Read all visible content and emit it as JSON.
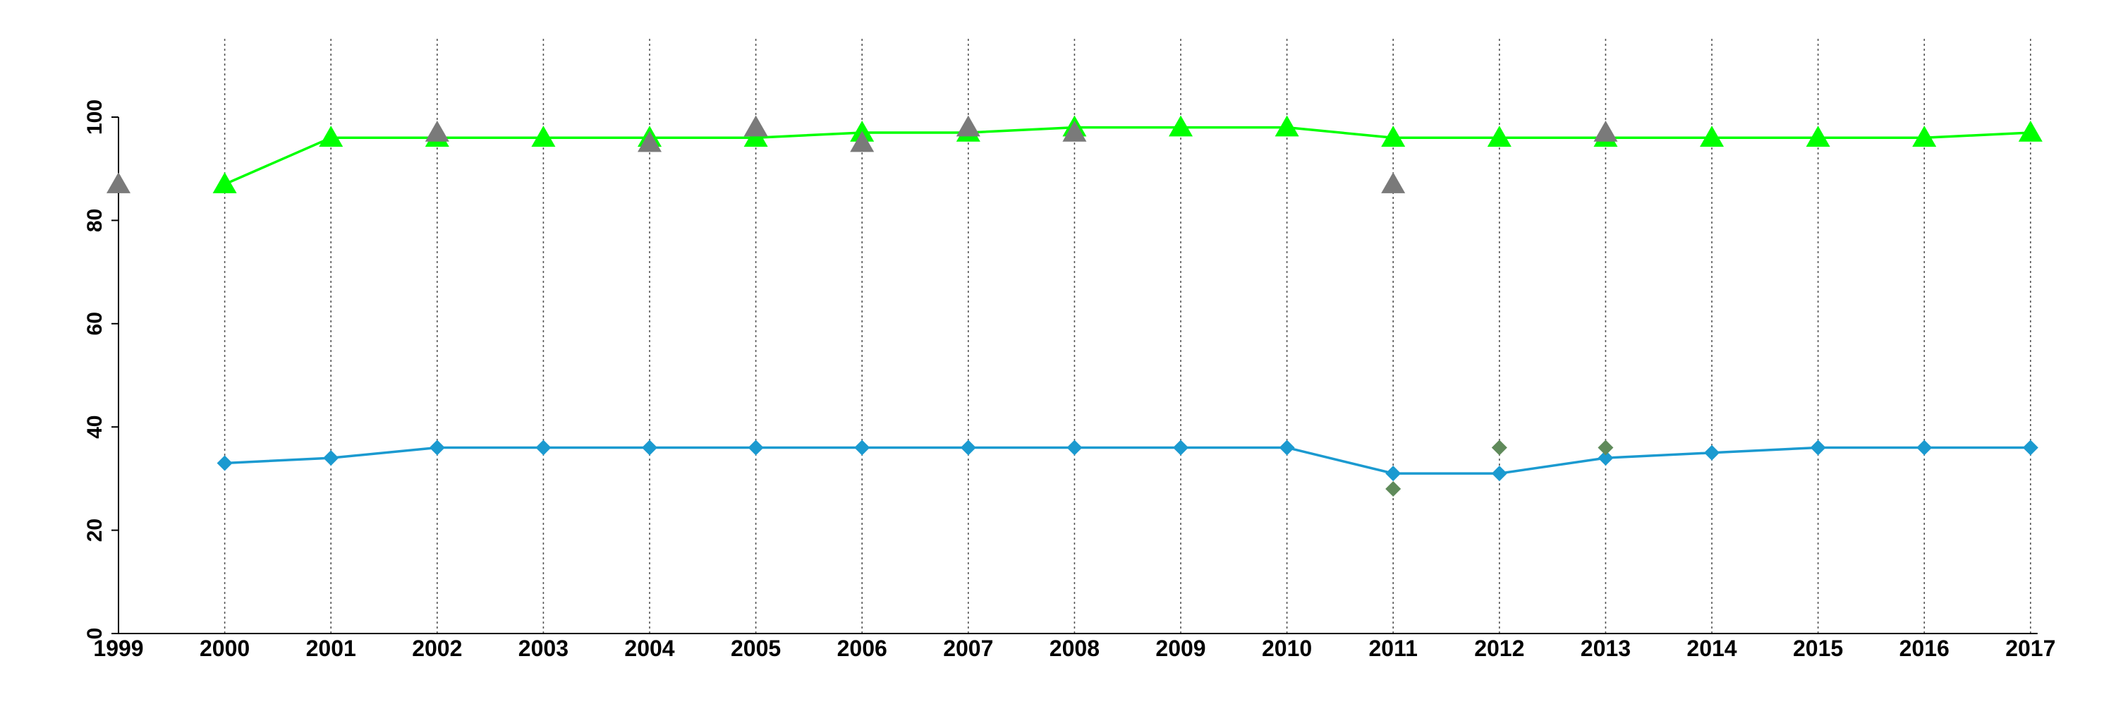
{
  "chart_data": {
    "type": "line",
    "title": "",
    "xlabel": "",
    "ylabel": "",
    "categories": [
      "1999",
      "2000",
      "2001",
      "2002",
      "2003",
      "2004",
      "2005",
      "2006",
      "2007",
      "2008",
      "2009",
      "2010",
      "2011",
      "2012",
      "2013",
      "2014",
      "2015",
      "2016",
      "2017"
    ],
    "ylim": [
      0,
      100
    ],
    "yticks": [
      0,
      20,
      40,
      60,
      80,
      100
    ],
    "grid": "vertical dotted lines at each year",
    "legend": "none",
    "series": [
      {
        "marker": "triangle",
        "color": "#00ff00",
        "line": true,
        "values": [
          null,
          87,
          96,
          96,
          96,
          96,
          96,
          97,
          97,
          98,
          98,
          98,
          96,
          96,
          96,
          96,
          96,
          96,
          97
        ]
      },
      {
        "marker": "diamond",
        "color": "#1b9ad0",
        "line": true,
        "values": [
          null,
          33,
          34,
          36,
          36,
          36,
          36,
          36,
          36,
          36,
          36,
          36,
          31,
          31,
          34,
          35,
          36,
          36,
          36
        ]
      },
      {
        "marker": "triangle",
        "color": "#7a7a7a",
        "line": false,
        "values": [
          87,
          null,
          null,
          97,
          null,
          95,
          98,
          95,
          98,
          97,
          null,
          null,
          87,
          null,
          97,
          null,
          null,
          null,
          null
        ]
      },
      {
        "marker": "diamond",
        "color": "#5f8a5a",
        "line": false,
        "values": [
          null,
          null,
          null,
          null,
          null,
          null,
          null,
          null,
          null,
          null,
          null,
          null,
          28,
          36,
          36,
          null,
          null,
          null,
          null
        ]
      }
    ]
  }
}
